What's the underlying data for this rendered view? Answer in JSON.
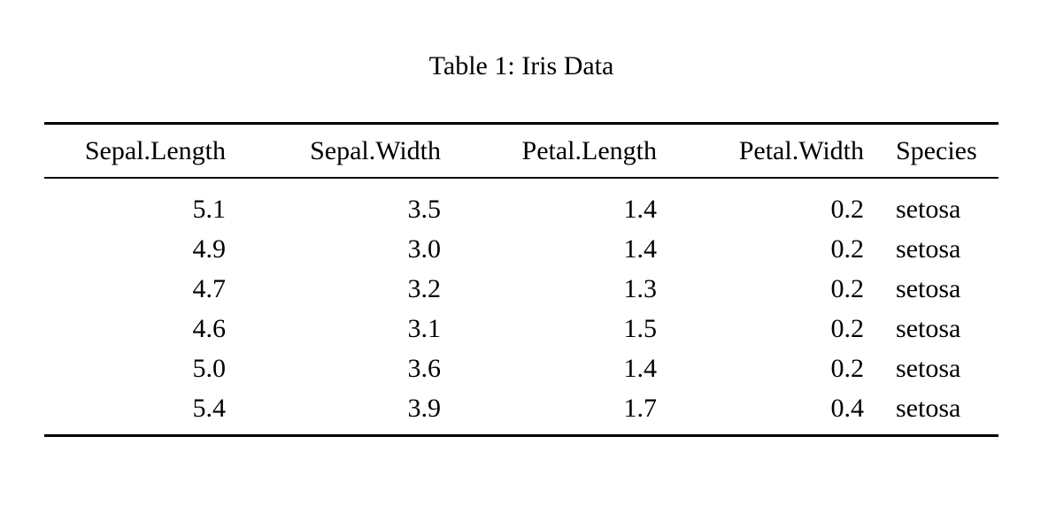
{
  "caption": "Table 1: Iris Data",
  "table": {
    "headers": [
      "Sepal.Length",
      "Sepal.Width",
      "Petal.Length",
      "Petal.Width",
      "Species"
    ],
    "rows": [
      [
        "5.1",
        "3.5",
        "1.4",
        "0.2",
        "setosa"
      ],
      [
        "4.9",
        "3.0",
        "1.4",
        "0.2",
        "setosa"
      ],
      [
        "4.7",
        "3.2",
        "1.3",
        "0.2",
        "setosa"
      ],
      [
        "4.6",
        "3.1",
        "1.5",
        "0.2",
        "setosa"
      ],
      [
        "5.0",
        "3.6",
        "1.4",
        "0.2",
        "setosa"
      ],
      [
        "5.4",
        "3.9",
        "1.7",
        "0.4",
        "setosa"
      ]
    ]
  },
  "colors": {
    "text": "#000000",
    "background": "#ffffff",
    "rule": "#000000"
  }
}
